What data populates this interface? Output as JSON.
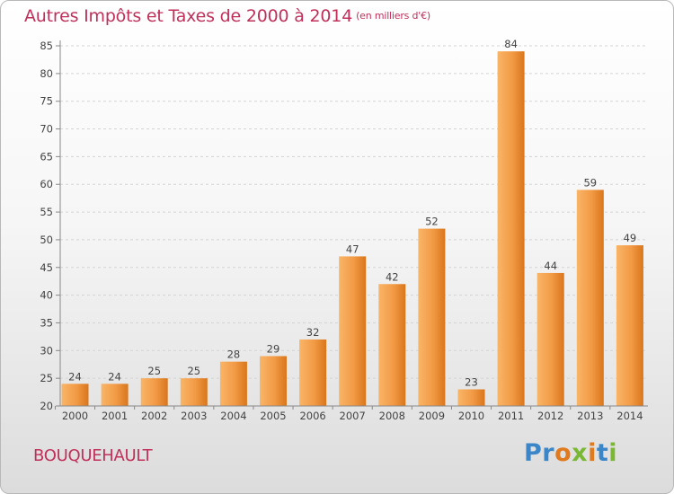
{
  "header": {
    "title": "Autres Impôts et Taxes de 2000 à 2014",
    "unit": "(en milliers d'€)"
  },
  "footer": {
    "commune": "BOUQUEHAULT",
    "logo": "Proxiti"
  },
  "colors": {
    "title": "#c0305a",
    "bar_light": "#f7a95a",
    "bar_dark": "#d97318"
  },
  "chart_data": {
    "type": "bar",
    "title": "Autres Impôts et Taxes de 2000 à 2014",
    "subtitle": "(en milliers d'€)",
    "xlabel": "",
    "ylabel": "",
    "categories": [
      "2000",
      "2001",
      "2002",
      "2003",
      "2004",
      "2005",
      "2006",
      "2007",
      "2008",
      "2009",
      "2010",
      "2011",
      "2012",
      "2013",
      "2014"
    ],
    "values": [
      24,
      24,
      25,
      25,
      28,
      29,
      32,
      47,
      42,
      52,
      23,
      84,
      44,
      59,
      49
    ],
    "ylim": [
      20,
      85
    ],
    "yticks": [
      20,
      25,
      30,
      35,
      40,
      45,
      50,
      55,
      60,
      65,
      70,
      75,
      80,
      85
    ],
    "grid": true,
    "legend": "none"
  }
}
